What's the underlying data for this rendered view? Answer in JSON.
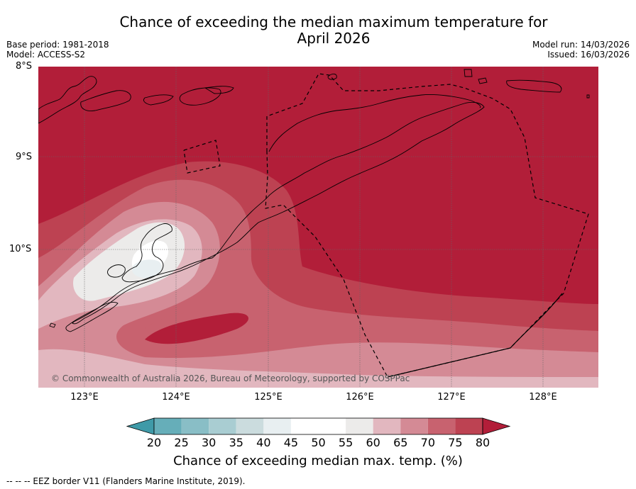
{
  "title": {
    "line1": "Chance of exceeding the median maximum temperature for",
    "line2": "April 2026"
  },
  "meta": {
    "base_period": "Base period: 1981-2018",
    "model": "Model: ACCESS-S2",
    "model_run": "Model run: 14/03/2026",
    "issued": "Issued: 16/03/2026"
  },
  "latitude_labels": [
    "8°S",
    "9°S",
    "10°S"
  ],
  "longitude_labels": [
    "123°E",
    "124°E",
    "125°E",
    "126°E",
    "127°E",
    "128°E"
  ],
  "copyright": "© Commonwealth of Australia 2026, Bureau of Meteorology, supported by COSPPac",
  "colorbar": {
    "label": "Chance of exceeding median max. temp. (%)",
    "ticks": [
      "20",
      "25",
      "30",
      "35",
      "40",
      "45",
      "50",
      "55",
      "60",
      "65",
      "70",
      "75",
      "80"
    ],
    "colors": [
      "#3f9aa8",
      "#66aeb9",
      "#89bec6",
      "#a9cdd2",
      "#cbdcde",
      "#e8eff1",
      "#ffffff",
      "#ffffff",
      "#ecebea",
      "#e2b7bf",
      "#d48a95",
      "#c8626f",
      "#bd4252",
      "#b21e39"
    ]
  },
  "footnote": "--  --  -- EEZ border V11 (Flanders Marine Institute, 2019).",
  "colors": {
    "high": "#b21e39",
    "land_line": "#000000",
    "grid": "#666666"
  }
}
